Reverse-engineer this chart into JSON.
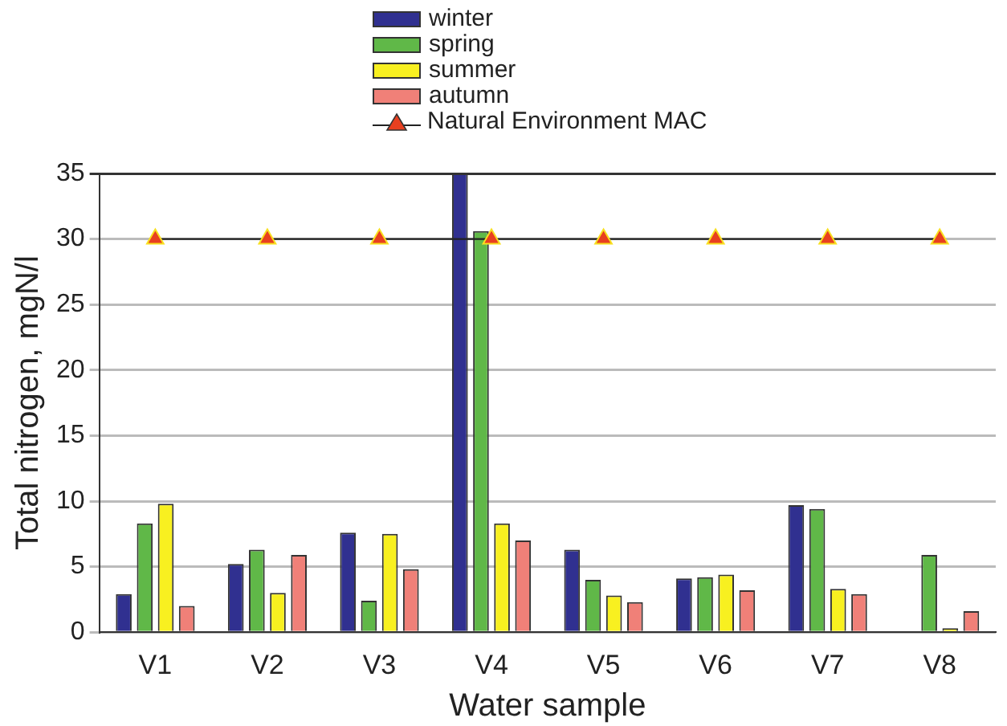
{
  "chart_data": {
    "type": "bar",
    "xlabel": "Water sample",
    "ylabel": "Total nitrogen, mgN/l",
    "categories": [
      "V1",
      "V2",
      "V3",
      "V4",
      "V5",
      "V6",
      "V7",
      "V8"
    ],
    "series": [
      {
        "name": "winter",
        "color": "#303090",
        "values": [
          2.9,
          5.2,
          7.6,
          35,
          6.3,
          4.1,
          9.7,
          null
        ]
      },
      {
        "name": "spring",
        "color": "#60b848",
        "values": [
          8.3,
          6.3,
          2.4,
          30.6,
          4.0,
          4.2,
          9.4,
          5.9
        ]
      },
      {
        "name": "summer",
        "color": "#f8f020",
        "values": [
          9.8,
          3.0,
          7.5,
          8.3,
          2.8,
          4.4,
          3.3,
          0.3
        ]
      },
      {
        "name": "autumn",
        "color": "#f08078",
        "values": [
          2.0,
          5.9,
          4.8,
          7.0,
          2.3,
          3.2,
          2.9,
          1.6
        ]
      },
      {
        "name": "Natural Environment MAC",
        "type": "line",
        "color": "#e84020",
        "marker": "triangle",
        "values": [
          30,
          30,
          30,
          30,
          30,
          30,
          30,
          30
        ]
      }
    ],
    "ylim": [
      0,
      35
    ],
    "yticks": [
      0,
      5,
      10,
      15,
      20,
      25,
      30,
      35
    ],
    "grid": "y",
    "legend": "top"
  }
}
